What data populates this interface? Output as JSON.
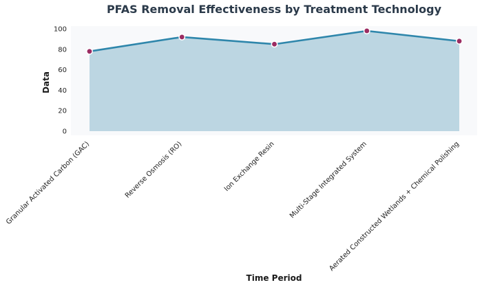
{
  "chart_data": {
    "type": "area",
    "title": "PFAS Removal Effectiveness by Treatment Technology",
    "xlabel": "Time Period",
    "ylabel": "Data",
    "categories": [
      "Granular Activated Carbon (GAC)",
      "Reverse Osmosis (RO)",
      "Ion Exchange Resin",
      "Multi-Stage Integrated System",
      "Aerated Constructed Wetlands + Chemical Polishing"
    ],
    "series": [
      {
        "values": [
          78,
          92,
          85,
          98,
          88
        ]
      }
    ],
    "ylim": [
      -3,
      103
    ],
    "yticks": [
      0,
      20,
      40,
      60,
      80,
      100
    ],
    "grid": false,
    "colors": {
      "plot_background": "#f8f9fb",
      "fill": "#bcd6e2",
      "line": "#2e86ab",
      "marker": "#9b2c62",
      "marker_edge": "#ffffff"
    }
  }
}
